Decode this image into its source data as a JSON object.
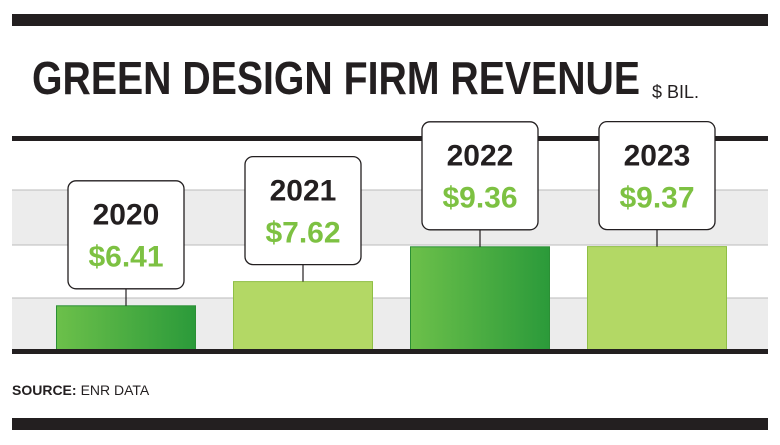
{
  "chart_data": {
    "type": "bar",
    "title": "GREEN DESIGN FIRM REVENUE",
    "unit": "$ BIL.",
    "categories": [
      "2020",
      "2021",
      "2022",
      "2023"
    ],
    "values": [
      6.41,
      7.62,
      9.36,
      9.37
    ],
    "value_labels": [
      "$6.41",
      "$7.62",
      "$9.36",
      "$9.37"
    ],
    "colors": [
      "#3fa63d",
      "#b3d865",
      "#3fa63d",
      "#b3d865"
    ],
    "ylim": [
      4.2,
      14.7
    ],
    "source_label": "SOURCE:",
    "source": "ENR DATA"
  }
}
